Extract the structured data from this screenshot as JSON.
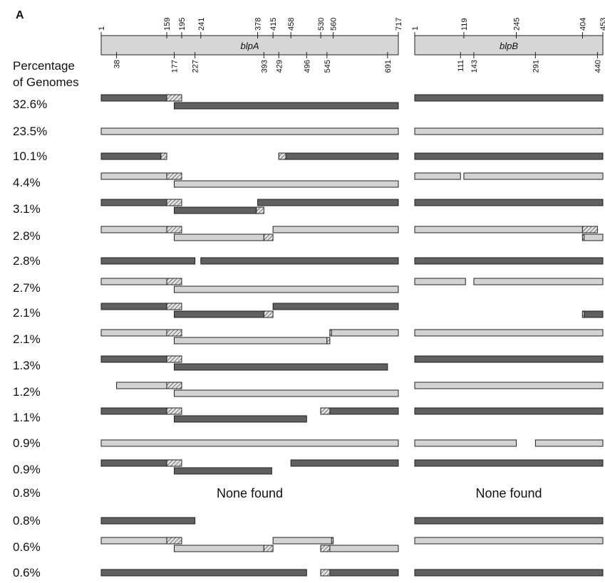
{
  "panel_label": "A",
  "row_header": [
    "Percentage",
    "of Genomes"
  ],
  "none_found": "None found",
  "colors": {
    "dark": "#606060",
    "light": "#d3d3d3",
    "stroke": "#222222",
    "gene_fill": "#d6d6d6"
  },
  "genes": [
    {
      "name": "blpA",
      "length": 717,
      "top_ticks": [
        1,
        159,
        195,
        241,
        378,
        415,
        458,
        530,
        560,
        717
      ],
      "bottom_ticks": [
        38,
        177,
        227,
        393,
        429,
        496,
        545,
        691
      ]
    },
    {
      "name": "blpB",
      "length": 453,
      "top_ticks": [
        1,
        119,
        245,
        404,
        453
      ],
      "bottom_ticks": [
        111,
        143,
        291,
        440
      ]
    }
  ],
  "rows": [
    {
      "pct": "32.6%",
      "a": [
        {
          "s": 1,
          "e": 159,
          "c": "dark",
          "l": 0,
          "h": [
            159,
            195
          ]
        },
        {
          "s": 177,
          "e": 717,
          "c": "dark",
          "l": 1
        }
      ],
      "b": [
        {
          "s": 1,
          "e": 453,
          "c": "dark",
          "l": 0
        }
      ]
    },
    {
      "pct": "23.5%",
      "a": [
        {
          "s": 1,
          "e": 717,
          "c": "light",
          "l": 0
        }
      ],
      "b": [
        {
          "s": 1,
          "e": 453,
          "c": "light",
          "l": 0
        }
      ]
    },
    {
      "pct": "10.1%",
      "a": [
        {
          "s": 1,
          "e": 145,
          "c": "dark",
          "l": 0,
          "h": [
            145,
            159
          ]
        },
        {
          "s": 429,
          "e": 717,
          "c": "dark",
          "l": 0,
          "hs": [
            429,
            446
          ]
        }
      ],
      "b": [
        {
          "s": 1,
          "e": 453,
          "c": "dark",
          "l": 0
        }
      ]
    },
    {
      "pct": "4.4%",
      "a": [
        {
          "s": 1,
          "e": 159,
          "c": "light",
          "l": 0,
          "h": [
            159,
            195
          ]
        },
        {
          "s": 177,
          "e": 717,
          "c": "light",
          "l": 1
        }
      ],
      "b": [
        {
          "s": 1,
          "e": 111,
          "c": "light",
          "l": 0
        },
        {
          "s": 119,
          "e": 453,
          "c": "light",
          "l": 0
        }
      ]
    },
    {
      "pct": "3.1%",
      "a": [
        {
          "s": 1,
          "e": 159,
          "c": "dark",
          "l": 0,
          "h": [
            159,
            195
          ]
        },
        {
          "s": 378,
          "e": 717,
          "c": "dark",
          "l": 0
        },
        {
          "s": 177,
          "e": 375,
          "c": "dark",
          "l": 1,
          "h": [
            375,
            393
          ]
        }
      ],
      "b": [
        {
          "s": 1,
          "e": 453,
          "c": "dark",
          "l": 0
        }
      ]
    },
    {
      "pct": "2.8%",
      "a": [
        {
          "s": 1,
          "e": 159,
          "c": "light",
          "l": 0,
          "h": [
            159,
            195
          ]
        },
        {
          "s": 415,
          "e": 717,
          "c": "light",
          "l": 0
        },
        {
          "s": 177,
          "e": 393,
          "c": "light",
          "l": 1,
          "h": [
            393,
            415
          ]
        }
      ],
      "b": [
        {
          "s": 1,
          "e": 404,
          "c": "light",
          "l": 0,
          "h": [
            404,
            440
          ]
        },
        {
          "s": 404,
          "e": 453,
          "c": "light",
          "l": 1,
          "hs": [
            404,
            408
          ]
        }
      ]
    },
    {
      "pct": "2.8%",
      "a": [
        {
          "s": 1,
          "e": 227,
          "c": "dark",
          "l": 0
        },
        {
          "s": 241,
          "e": 717,
          "c": "dark",
          "l": 0
        }
      ],
      "b": [
        {
          "s": 1,
          "e": 453,
          "c": "dark",
          "l": 0
        }
      ]
    },
    {
      "pct": "2.7%",
      "a": [
        {
          "s": 1,
          "e": 159,
          "c": "light",
          "l": 0,
          "h": [
            159,
            195
          ]
        },
        {
          "s": 177,
          "e": 717,
          "c": "light",
          "l": 1
        }
      ],
      "b": [
        {
          "s": 1,
          "e": 123,
          "c": "light",
          "l": 0
        },
        {
          "s": 143,
          "e": 453,
          "c": "light",
          "l": 0
        }
      ]
    },
    {
      "pct": "2.1%",
      "a": [
        {
          "s": 1,
          "e": 159,
          "c": "dark",
          "l": 0,
          "h": [
            159,
            195
          ]
        },
        {
          "s": 415,
          "e": 717,
          "c": "dark",
          "l": 0
        },
        {
          "s": 177,
          "e": 393,
          "c": "dark",
          "l": 1,
          "h": [
            393,
            415
          ]
        }
      ],
      "b": [
        {
          "s": 404,
          "e": 453,
          "c": "dark",
          "l": 1,
          "hs": [
            404,
            408
          ]
        }
      ]
    },
    {
      "pct": "2.1%",
      "a": [
        {
          "s": 1,
          "e": 159,
          "c": "light",
          "l": 0,
          "h": [
            159,
            195
          ]
        },
        {
          "s": 552,
          "e": 717,
          "c": "light",
          "l": 0,
          "hs": [
            552,
            556
          ]
        },
        {
          "s": 177,
          "e": 545,
          "c": "light",
          "l": 1,
          "h": [
            545,
            552
          ]
        }
      ],
      "b": [
        {
          "s": 1,
          "e": 453,
          "c": "light",
          "l": 0
        }
      ]
    },
    {
      "pct": "1.3%",
      "a": [
        {
          "s": 1,
          "e": 159,
          "c": "dark",
          "l": 0,
          "h": [
            159,
            195
          ]
        },
        {
          "s": 177,
          "e": 691,
          "c": "dark",
          "l": 1
        }
      ],
      "b": [
        {
          "s": 1,
          "e": 453,
          "c": "dark",
          "l": 0
        }
      ]
    },
    {
      "pct": "1.2%",
      "a": [
        {
          "s": 38,
          "e": 159,
          "c": "light",
          "l": 0,
          "h": [
            159,
            195
          ]
        },
        {
          "s": 177,
          "e": 717,
          "c": "light",
          "l": 1
        }
      ],
      "b": [
        {
          "s": 1,
          "e": 453,
          "c": "light",
          "l": 0
        }
      ]
    },
    {
      "pct": "1.1%",
      "a": [
        {
          "s": 1,
          "e": 159,
          "c": "dark",
          "l": 0,
          "h": [
            159,
            195
          ]
        },
        {
          "s": 530,
          "e": 717,
          "c": "dark",
          "l": 0,
          "hs": [
            530,
            552
          ]
        },
        {
          "s": 177,
          "e": 496,
          "c": "dark",
          "l": 1
        }
      ],
      "b": [
        {
          "s": 1,
          "e": 453,
          "c": "dark",
          "l": 0
        }
      ]
    },
    {
      "pct": "0.9%",
      "a": [
        {
          "s": 1,
          "e": 717,
          "c": "light",
          "l": 0
        }
      ],
      "b": [
        {
          "s": 1,
          "e": 245,
          "c": "light",
          "l": 0
        },
        {
          "s": 291,
          "e": 453,
          "c": "light",
          "l": 0
        }
      ]
    },
    {
      "pct": "0.9%",
      "a": [
        {
          "s": 1,
          "e": 159,
          "c": "dark",
          "l": 0,
          "h": [
            159,
            195
          ]
        },
        {
          "s": 458,
          "e": 717,
          "c": "dark",
          "l": 0
        },
        {
          "s": 177,
          "e": 412,
          "c": "dark",
          "l": 1
        }
      ],
      "b": [
        {
          "s": 1,
          "e": 453,
          "c": "dark",
          "l": 0
        }
      ]
    },
    {
      "pct": "0.8%",
      "none": true,
      "a": [],
      "b": []
    },
    {
      "pct": "0.8%",
      "a": [
        {
          "s": 1,
          "e": 227,
          "c": "dark",
          "l": 0
        }
      ],
      "b": [
        {
          "s": 1,
          "e": 453,
          "c": "dark",
          "l": 0
        }
      ]
    },
    {
      "pct": "0.6%",
      "a": [
        {
          "s": 1,
          "e": 159,
          "c": "light",
          "l": 0,
          "h": [
            159,
            195
          ]
        },
        {
          "s": 415,
          "e": 560,
          "c": "light",
          "l": 0,
          "hs": [
            556,
            560
          ]
        },
        {
          "s": 177,
          "e": 393,
          "c": "light",
          "l": 1,
          "h": [
            393,
            415
          ]
        },
        {
          "s": 530,
          "e": 717,
          "c": "light",
          "l": 1,
          "hs": [
            530,
            552
          ]
        }
      ],
      "b": [
        {
          "s": 1,
          "e": 453,
          "c": "light",
          "l": 0
        }
      ]
    },
    {
      "pct": "0.6%",
      "a": [
        {
          "s": 1,
          "e": 496,
          "c": "dark",
          "l": 0
        },
        {
          "s": 530,
          "e": 717,
          "c": "dark",
          "l": 0,
          "hs": [
            530,
            552
          ]
        }
      ],
      "b": [
        {
          "s": 1,
          "e": 453,
          "c": "dark",
          "l": 0
        }
      ]
    }
  ]
}
